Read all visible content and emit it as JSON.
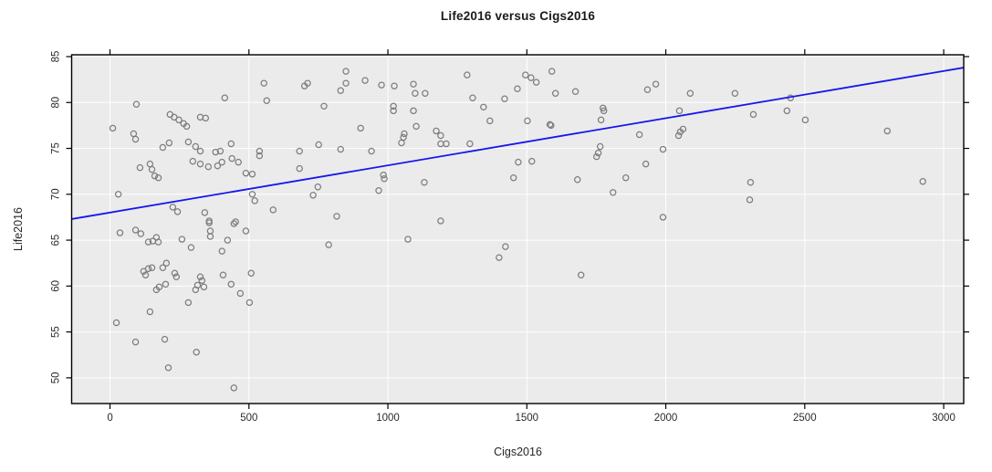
{
  "chart_data": {
    "type": "scatter",
    "title": "Life2016 versus Cigs2016",
    "xlabel": "Cigs2016",
    "ylabel": "Life2016",
    "xlim": [
      -138,
      3072
    ],
    "ylim": [
      47.2,
      85.2
    ],
    "x_ticks": [
      0,
      500,
      1000,
      1500,
      2000,
      2500,
      3000
    ],
    "y_ticks": [
      50,
      55,
      60,
      65,
      70,
      75,
      80,
      85
    ],
    "grid": true,
    "legend": "none",
    "colors": {
      "panel_bg": "#ebebeb",
      "grid": "#ffffff",
      "point_stroke": "#7d7d7d",
      "regression_line": "#1616ee",
      "axis": "#000000",
      "tick_label": "#2b2b2b"
    },
    "regression_line": {
      "x1": -138,
      "y1": 67.3,
      "x2": 3072,
      "y2": 83.8
    },
    "points": [
      [
        554,
        82.1
      ],
      [
        95,
        79.8
      ],
      [
        10,
        77.2
      ],
      [
        413,
        80.5
      ],
      [
        564,
        80.2
      ],
      [
        216,
        78.7
      ],
      [
        231,
        78.4
      ],
      [
        248,
        78.1
      ],
      [
        265,
        77.7
      ],
      [
        276,
        77.4
      ],
      [
        325,
        78.4
      ],
      [
        344,
        78.3
      ],
      [
        85,
        76.6
      ],
      [
        92,
        76.0
      ],
      [
        190,
        75.1
      ],
      [
        213,
        75.6
      ],
      [
        282,
        75.7
      ],
      [
        308,
        75.2
      ],
      [
        325,
        74.7
      ],
      [
        380,
        74.6
      ],
      [
        397,
        74.7
      ],
      [
        436,
        75.5
      ],
      [
        439,
        73.9
      ],
      [
        462,
        73.5
      ],
      [
        298,
        73.6
      ],
      [
        325,
        73.3
      ],
      [
        354,
        73.0
      ],
      [
        387,
        73.1
      ],
      [
        403,
        73.5
      ],
      [
        108,
        72.9
      ],
      [
        144,
        73.3
      ],
      [
        151,
        72.7
      ],
      [
        161,
        72.0
      ],
      [
        174,
        71.8
      ],
      [
        489,
        72.3
      ],
      [
        512,
        72.2
      ],
      [
        538,
        74.7
      ],
      [
        538,
        74.2
      ],
      [
        30,
        70.0
      ],
      [
        512,
        70.0
      ],
      [
        521,
        69.3
      ],
      [
        226,
        68.6
      ],
      [
        243,
        68.1
      ],
      [
        341,
        68.0
      ],
      [
        357,
        67.1
      ],
      [
        452,
        67.0
      ],
      [
        587,
        68.3
      ],
      [
        682,
        74.7
      ],
      [
        682,
        72.8
      ],
      [
        36,
        65.8
      ],
      [
        92,
        66.1
      ],
      [
        111,
        65.7
      ],
      [
        138,
        64.8
      ],
      [
        154,
        64.9
      ],
      [
        167,
        65.3
      ],
      [
        174,
        64.8
      ],
      [
        259,
        65.1
      ],
      [
        292,
        64.2
      ],
      [
        357,
        66.9
      ],
      [
        361,
        66.0
      ],
      [
        361,
        65.4
      ],
      [
        446,
        66.8
      ],
      [
        489,
        66.0
      ],
      [
        423,
        65.0
      ],
      [
        403,
        63.8
      ],
      [
        121,
        61.6
      ],
      [
        128,
        61.2
      ],
      [
        138,
        61.9
      ],
      [
        151,
        62.0
      ],
      [
        190,
        62.0
      ],
      [
        203,
        62.5
      ],
      [
        233,
        61.4
      ],
      [
        239,
        61.0
      ],
      [
        167,
        59.6
      ],
      [
        177,
        59.9
      ],
      [
        200,
        60.2
      ],
      [
        308,
        59.6
      ],
      [
        315,
        60.1
      ],
      [
        325,
        61.0
      ],
      [
        331,
        60.6
      ],
      [
        338,
        59.9
      ],
      [
        407,
        61.2
      ],
      [
        436,
        60.2
      ],
      [
        469,
        59.2
      ],
      [
        508,
        61.4
      ],
      [
        282,
        58.2
      ],
      [
        502,
        58.2
      ],
      [
        144,
        57.2
      ],
      [
        23,
        56.0
      ],
      [
        92,
        53.9
      ],
      [
        197,
        54.2
      ],
      [
        311,
        52.8
      ],
      [
        210,
        51.1
      ],
      [
        446,
        48.9
      ],
      [
        700,
        81.8
      ],
      [
        711,
        82.1
      ],
      [
        849,
        83.4
      ],
      [
        849,
        82.1
      ],
      [
        830,
        81.3
      ],
      [
        918,
        82.4
      ],
      [
        977,
        81.9
      ],
      [
        1023,
        81.8
      ],
      [
        1092,
        82.0
      ],
      [
        1098,
        81.0
      ],
      [
        1134,
        81.0
      ],
      [
        1285,
        83.0
      ],
      [
        1495,
        83.0
      ],
      [
        1515,
        82.7
      ],
      [
        1534,
        82.2
      ],
      [
        1466,
        81.5
      ],
      [
        1305,
        80.5
      ],
      [
        1344,
        79.5
      ],
      [
        770,
        79.6
      ],
      [
        830,
        74.9
      ],
      [
        751,
        75.4
      ],
      [
        902,
        77.2
      ],
      [
        1020,
        79.6
      ],
      [
        1020,
        79.1
      ],
      [
        1092,
        79.1
      ],
      [
        1102,
        77.4
      ],
      [
        1059,
        76.6
      ],
      [
        1056,
        76.2
      ],
      [
        1049,
        75.6
      ],
      [
        1174,
        76.9
      ],
      [
        1190,
        76.4
      ],
      [
        1190,
        75.5
      ],
      [
        1210,
        75.5
      ],
      [
        1295,
        75.5
      ],
      [
        941,
        74.7
      ],
      [
        1367,
        78.0
      ],
      [
        1502,
        78.0
      ],
      [
        1420,
        80.4
      ],
      [
        1469,
        73.5
      ],
      [
        1518,
        73.6
      ],
      [
        1452,
        71.8
      ],
      [
        984,
        72.1
      ],
      [
        987,
        71.7
      ],
      [
        967,
        70.4
      ],
      [
        1131,
        71.3
      ],
      [
        748,
        70.8
      ],
      [
        731,
        69.9
      ],
      [
        816,
        67.6
      ],
      [
        1190,
        67.1
      ],
      [
        1072,
        65.1
      ],
      [
        787,
        64.5
      ],
      [
        1423,
        64.3
      ],
      [
        1400,
        63.1
      ],
      [
        1590,
        83.4
      ],
      [
        1603,
        81.0
      ],
      [
        1675,
        81.2
      ],
      [
        1934,
        81.4
      ],
      [
        1964,
        82.0
      ],
      [
        2088,
        81.0
      ],
      [
        2249,
        81.0
      ],
      [
        1774,
        79.4
      ],
      [
        1777,
        79.1
      ],
      [
        1767,
        78.1
      ],
      [
        2049,
        79.1
      ],
      [
        2315,
        78.7
      ],
      [
        1583,
        77.6
      ],
      [
        1587,
        77.5
      ],
      [
        1905,
        76.5
      ],
      [
        2062,
        77.1
      ],
      [
        2052,
        76.8
      ],
      [
        2046,
        76.4
      ],
      [
        1990,
        74.9
      ],
      [
        1764,
        75.2
      ],
      [
        1757,
        74.5
      ],
      [
        1751,
        74.1
      ],
      [
        1682,
        71.6
      ],
      [
        1856,
        71.8
      ],
      [
        1810,
        70.2
      ],
      [
        1928,
        73.3
      ],
      [
        2305,
        71.3
      ],
      [
        2302,
        69.4
      ],
      [
        1990,
        67.5
      ],
      [
        1695,
        61.2
      ],
      [
        2449,
        80.5
      ],
      [
        2436,
        79.1
      ],
      [
        2502,
        78.1
      ],
      [
        2797,
        76.9
      ],
      [
        2925,
        71.4
      ]
    ]
  }
}
